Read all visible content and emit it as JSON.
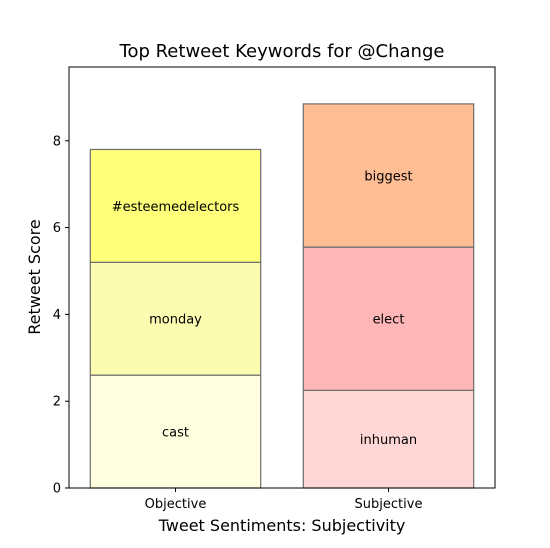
{
  "chart_data": {
    "type": "bar",
    "stacked": true,
    "title": "Top Retweet Keywords for @Change",
    "xlabel": "Tweet Sentiments: Subjectivity",
    "ylabel": "Retweet Score",
    "ylim": [
      0,
      9.7
    ],
    "yticks": [
      0,
      2,
      4,
      6,
      8
    ],
    "grid": false,
    "categories": [
      "Objective",
      "Subjective"
    ],
    "bars": [
      {
        "category": "Objective",
        "segments": [
          {
            "label": "cast",
            "value": 2.6,
            "color": "#ffffe0"
          },
          {
            "label": "monday",
            "value": 2.6,
            "color": "#fcfcb0"
          },
          {
            "label": "#esteemedelectors",
            "value": 2.6,
            "color": "#ffff7a"
          }
        ]
      },
      {
        "category": "Subjective",
        "segments": [
          {
            "label": "inhuman",
            "value": 2.25,
            "color": "#ffd7d7"
          },
          {
            "label": "elect",
            "value": 3.3,
            "color": "#ffb6b6"
          },
          {
            "label": "biggest",
            "value": 3.3,
            "color": "#ffbd94"
          }
        ]
      }
    ]
  }
}
